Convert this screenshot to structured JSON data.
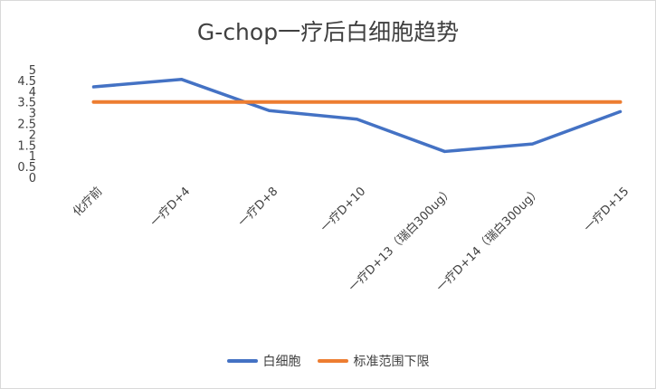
{
  "chart_data": {
    "type": "line",
    "title": "G-chop一疗后白细胞趋势",
    "categories": [
      "化疗前",
      "一疗D+4",
      "一疗D+8",
      "一疗D+10",
      "一疗D+13（瑞白300ug）",
      "一疗D+14（瑞白300ug）",
      "一疗D+15"
    ],
    "series": [
      {
        "name": "白细胞",
        "values": [
          4.2,
          4.55,
          3.1,
          2.7,
          1.2,
          1.55,
          3.05
        ],
        "color": "#4472C4"
      },
      {
        "name": "标准范围下限",
        "values": [
          3.5,
          3.5,
          3.5,
          3.5,
          3.5,
          3.5,
          3.5
        ],
        "color": "#ED7D31"
      }
    ],
    "yticks": [
      "0",
      "0.5",
      "1",
      "1.5",
      "2",
      "2.5",
      "3",
      "3.5",
      "4",
      "4.5",
      "5"
    ],
    "ylim": [
      0,
      5
    ],
    "legend_position": "bottom",
    "grid": false
  }
}
